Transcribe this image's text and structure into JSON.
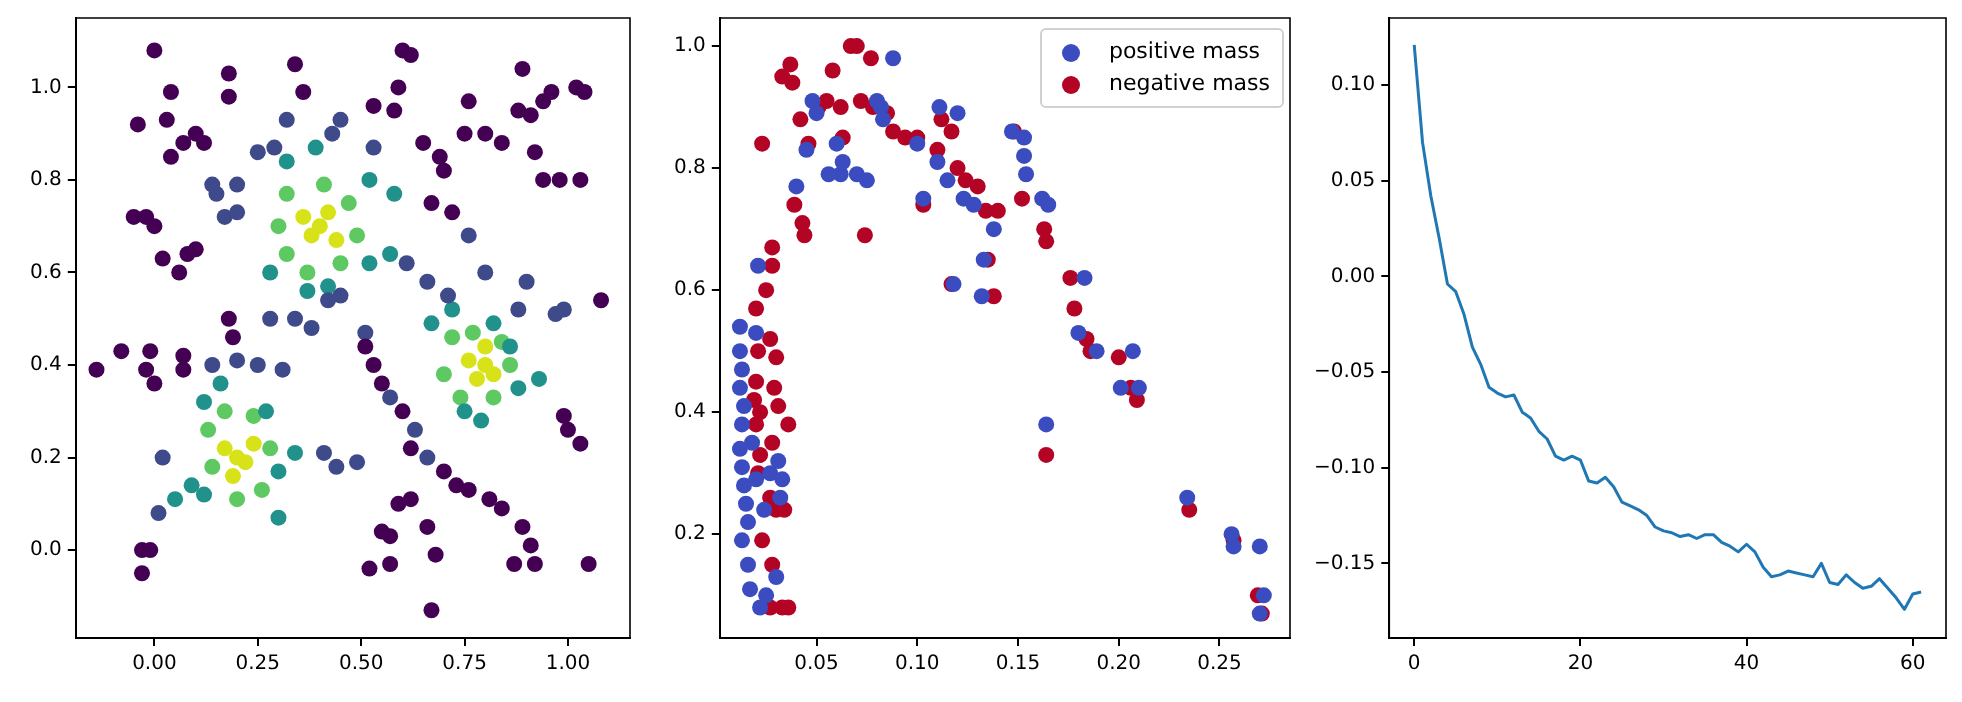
{
  "chart_data": [
    {
      "type": "scatter",
      "marker": "circle",
      "grid": false,
      "xlim": [
        -0.19,
        1.15
      ],
      "ylim": [
        -0.19,
        1.15
      ],
      "xticks": [
        {
          "value": 0,
          "label": "0.00"
        },
        0.25,
        {
          "value": 0.5,
          "label": "0.50"
        },
        0.75,
        {
          "value": 1,
          "label": "1.00"
        }
      ],
      "yticks": [
        {
          "value": 0,
          "label": "0.0"
        },
        0.2,
        0.4,
        0.6,
        0.8,
        {
          "value": 1,
          "label": "1.0"
        }
      ],
      "series": [
        {
          "color": "#440154",
          "x": [
            0.0,
            -0.04,
            0.03,
            0.04,
            0.04,
            0.07,
            0.1,
            0.12,
            -0.05,
            -0.02,
            0.0,
            0.02,
            0.06,
            0.08,
            0.1,
            -0.14,
            -0.08,
            -0.02,
            -0.01,
            0.0,
            0.07,
            0.07,
            0.18,
            0.19,
            -0.03,
            -0.01,
            -0.03,
            0.18,
            0.18,
            0.34,
            0.36,
            0.6,
            0.62,
            0.59,
            0.58,
            0.53,
            0.76,
            0.75,
            0.8,
            0.84,
            0.89,
            0.88,
            0.91,
            0.94,
            0.96,
            1.02,
            1.04,
            0.92,
            0.94,
            0.98,
            1.03,
            0.65,
            0.69,
            0.7,
            0.67,
            0.72,
            1.08,
            0.53,
            0.51,
            0.55,
            0.6,
            0.62,
            0.7,
            0.73,
            0.76,
            0.81,
            0.84,
            0.89,
            0.91,
            0.92,
            0.87,
            1.05,
            0.59,
            0.62,
            0.57,
            0.55,
            0.52,
            0.57,
            0.66,
            0.67,
            0.68,
            1.0,
            1.03,
            0.99
          ],
          "values": [
            1.08,
            0.92,
            0.93,
            0.99,
            0.85,
            0.88,
            0.9,
            0.88,
            0.72,
            0.72,
            0.7,
            0.63,
            0.6,
            0.64,
            0.65,
            0.39,
            0.43,
            0.39,
            0.43,
            0.36,
            0.42,
            0.39,
            0.5,
            0.46,
            0.0,
            0.0,
            -0.05,
            1.03,
            0.98,
            1.05,
            0.99,
            1.08,
            1.07,
            1.0,
            0.95,
            0.96,
            0.97,
            0.9,
            0.9,
            0.88,
            1.04,
            0.95,
            0.94,
            0.97,
            0.99,
            1.0,
            0.99,
            0.86,
            0.8,
            0.8,
            0.8,
            0.88,
            0.85,
            0.82,
            0.75,
            0.73,
            0.54,
            0.4,
            0.44,
            0.36,
            0.3,
            0.22,
            0.17,
            0.14,
            0.13,
            0.11,
            0.09,
            0.05,
            0.01,
            -0.03,
            -0.03,
            -0.03,
            0.1,
            0.11,
            0.03,
            0.04,
            -0.04,
            -0.03,
            0.05,
            -0.13,
            -0.01,
            0.26,
            0.23,
            0.29
          ]
        },
        {
          "color": "#3e4a89",
          "x": [
            0.15,
            0.17,
            0.2,
            0.14,
            0.2,
            0.25,
            0.29,
            0.32,
            0.43,
            0.45,
            0.53,
            0.61,
            0.66,
            0.71,
            0.76,
            0.8,
            0.88,
            0.9,
            0.97,
            0.99,
            0.34,
            0.38,
            0.42,
            0.45,
            0.51,
            0.14,
            0.2,
            0.25,
            0.31,
            0.28,
            0.41,
            0.44,
            0.49,
            0.02,
            0.57,
            0.63,
            0.66,
            0.01
          ],
          "values": [
            0.77,
            0.72,
            0.73,
            0.79,
            0.79,
            0.86,
            0.87,
            0.93,
            0.9,
            0.93,
            0.87,
            0.62,
            0.58,
            0.55,
            0.68,
            0.6,
            0.52,
            0.58,
            0.51,
            0.52,
            0.5,
            0.48,
            0.54,
            0.55,
            0.47,
            0.4,
            0.41,
            0.4,
            0.39,
            0.5,
            0.21,
            0.18,
            0.19,
            0.2,
            0.33,
            0.26,
            0.2,
            0.08
          ]
        },
        {
          "color": "#21918c",
          "x": [
            0.32,
            0.28,
            0.37,
            0.42,
            0.52,
            0.57,
            0.58,
            0.52,
            0.39,
            0.67,
            0.72,
            0.86,
            0.88,
            0.75,
            0.79,
            0.12,
            0.16,
            0.27,
            0.09,
            0.12,
            0.3,
            0.05,
            0.34,
            0.3,
            0.93,
            0.82
          ],
          "values": [
            0.84,
            0.6,
            0.56,
            0.57,
            0.62,
            0.64,
            0.77,
            0.8,
            0.87,
            0.49,
            0.52,
            0.44,
            0.35,
            0.3,
            0.28,
            0.32,
            0.36,
            0.3,
            0.14,
            0.12,
            0.07,
            0.11,
            0.21,
            0.17,
            0.37,
            0.49
          ]
        },
        {
          "color": "#5ec962",
          "x": [
            0.32,
            0.3,
            0.32,
            0.37,
            0.45,
            0.49,
            0.47,
            0.41,
            0.72,
            0.7,
            0.74,
            0.82,
            0.86,
            0.84,
            0.77,
            0.13,
            0.14,
            0.2,
            0.26,
            0.28,
            0.24,
            0.17
          ],
          "values": [
            0.77,
            0.7,
            0.64,
            0.6,
            0.62,
            0.68,
            0.75,
            0.79,
            0.46,
            0.38,
            0.33,
            0.33,
            0.4,
            0.45,
            0.47,
            0.26,
            0.18,
            0.11,
            0.13,
            0.22,
            0.29,
            0.3
          ]
        },
        {
          "color": "#d8e219",
          "x": [
            0.36,
            0.42,
            0.38,
            0.44,
            0.4,
            0.76,
            0.8,
            0.82,
            0.78,
            0.8,
            0.17,
            0.22,
            0.19,
            0.24,
            0.2
          ],
          "values": [
            0.72,
            0.73,
            0.68,
            0.67,
            0.7,
            0.41,
            0.44,
            0.38,
            0.37,
            0.4,
            0.22,
            0.19,
            0.16,
            0.23,
            0.2
          ]
        }
      ]
    },
    {
      "type": "scatter",
      "marker": "circle",
      "grid": false,
      "legend": "top right",
      "xlim": [
        0.002,
        0.285
      ],
      "ylim": [
        0.03,
        1.046
      ],
      "xticks": [
        0.05,
        {
          "value": 0.1,
          "label": "0.10"
        },
        0.15,
        {
          "value": 0.2,
          "label": "0.20"
        },
        0.25
      ],
      "yticks": [
        0.2,
        0.4,
        0.6,
        0.8,
        {
          "value": 1,
          "label": "1.0"
        }
      ],
      "series": [
        {
          "name": "positive mass",
          "color": "#3b4cc0",
          "x": [
            0.012,
            0.012,
            0.013,
            0.012,
            0.014,
            0.013,
            0.012,
            0.013,
            0.014,
            0.015,
            0.013,
            0.016,
            0.017,
            0.016,
            0.018,
            0.02,
            0.022,
            0.021,
            0.02,
            0.024,
            0.027,
            0.031,
            0.033,
            0.032,
            0.03,
            0.025,
            0.04,
            0.045,
            0.048,
            0.05,
            0.056,
            0.06,
            0.062,
            0.063,
            0.07,
            0.075,
            0.08,
            0.082,
            0.083,
            0.088,
            0.1,
            0.103,
            0.11,
            0.111,
            0.115,
            0.12,
            0.118,
            0.123,
            0.128,
            0.132,
            0.133,
            0.138,
            0.147,
            0.153,
            0.153,
            0.154,
            0.162,
            0.165,
            0.164,
            0.183,
            0.18,
            0.189,
            0.201,
            0.207,
            0.21,
            0.234,
            0.256,
            0.257,
            0.27,
            0.27,
            0.272
          ],
          "values": [
            0.54,
            0.5,
            0.47,
            0.44,
            0.41,
            0.38,
            0.34,
            0.31,
            0.28,
            0.25,
            0.19,
            0.15,
            0.11,
            0.22,
            0.35,
            0.29,
            0.08,
            0.64,
            0.53,
            0.24,
            0.3,
            0.32,
            0.29,
            0.26,
            0.13,
            0.1,
            0.77,
            0.83,
            0.91,
            0.89,
            0.79,
            0.84,
            0.79,
            0.81,
            0.79,
            0.78,
            0.91,
            0.9,
            0.88,
            0.98,
            0.84,
            0.75,
            0.81,
            0.9,
            0.78,
            0.89,
            0.61,
            0.75,
            0.74,
            0.59,
            0.65,
            0.7,
            0.86,
            0.85,
            0.82,
            0.79,
            0.75,
            0.74,
            0.38,
            0.62,
            0.53,
            0.5,
            0.44,
            0.5,
            0.44,
            0.26,
            0.2,
            0.18,
            0.18,
            0.07,
            0.1
          ]
        },
        {
          "name": "negative mass",
          "color": "#b40426",
          "x": [
            0.02,
            0.021,
            0.02,
            0.019,
            0.02,
            0.022,
            0.021,
            0.023,
            0.022,
            0.025,
            0.023,
            0.028,
            0.028,
            0.027,
            0.03,
            0.029,
            0.031,
            0.028,
            0.027,
            0.03,
            0.028,
            0.027,
            0.033,
            0.036,
            0.034,
            0.036,
            0.033,
            0.037,
            0.038,
            0.039,
            0.043,
            0.044,
            0.042,
            0.046,
            0.051,
            0.055,
            0.058,
            0.063,
            0.062,
            0.067,
            0.07,
            0.072,
            0.074,
            0.077,
            0.078,
            0.085,
            0.088,
            0.094,
            0.1,
            0.103,
            0.11,
            0.112,
            0.117,
            0.117,
            0.12,
            0.124,
            0.13,
            0.134,
            0.135,
            0.138,
            0.14,
            0.148,
            0.152,
            0.163,
            0.164,
            0.164,
            0.176,
            0.178,
            0.184,
            0.186,
            0.2,
            0.206,
            0.209,
            0.235,
            0.257,
            0.269,
            0.271
          ],
          "values": [
            0.57,
            0.5,
            0.45,
            0.42,
            0.38,
            0.33,
            0.3,
            0.19,
            0.4,
            0.6,
            0.84,
            0.64,
            0.67,
            0.52,
            0.49,
            0.44,
            0.41,
            0.35,
            0.26,
            0.24,
            0.15,
            0.08,
            0.08,
            0.08,
            0.24,
            0.38,
            0.95,
            0.97,
            0.94,
            0.74,
            0.71,
            0.69,
            0.88,
            0.84,
            0.9,
            0.91,
            0.96,
            0.85,
            0.9,
            1.0,
            1.0,
            0.91,
            0.69,
            0.98,
            0.9,
            0.89,
            0.86,
            0.85,
            0.85,
            0.74,
            0.83,
            0.88,
            0.86,
            0.61,
            0.8,
            0.78,
            0.77,
            0.73,
            0.65,
            0.59,
            0.73,
            0.86,
            0.75,
            0.7,
            0.68,
            0.33,
            0.62,
            0.57,
            0.52,
            0.5,
            0.49,
            0.44,
            0.42,
            0.24,
            0.19,
            0.1,
            0.07
          ]
        }
      ]
    },
    {
      "type": "line",
      "grid": false,
      "xlim": [
        -3.0,
        64.0
      ],
      "ylim": [
        -0.189,
        0.135
      ],
      "xticks": [
        0,
        20,
        40,
        60
      ],
      "yticks": [
        {
          "value": -0.15,
          "label": "−0.15"
        },
        {
          "value": -0.1,
          "label": "−0.10"
        },
        {
          "value": -0.05,
          "label": "−0.05"
        },
        {
          "value": 0,
          "label": "0.00"
        },
        0.05,
        {
          "value": 0.1,
          "label": "0.10"
        }
      ],
      "x": [
        0,
        1,
        2,
        3,
        4,
        5,
        6,
        7,
        8,
        9,
        10,
        11,
        12,
        13,
        14,
        15,
        16,
        17,
        18,
        19,
        20,
        21,
        22,
        23,
        24,
        25,
        26,
        27,
        28,
        29,
        30,
        31,
        32,
        33,
        34,
        35,
        36,
        37,
        38,
        39,
        40,
        41,
        42,
        43,
        44,
        45,
        46,
        47,
        48,
        49,
        50,
        51,
        52,
        53,
        54,
        55,
        56,
        57,
        58,
        59,
        60,
        61
      ],
      "series": [
        {
          "color": "#1f77b4",
          "values": [
            0.121,
            0.07,
            0.042,
            0.02,
            -0.004,
            -0.008,
            -0.02,
            -0.037,
            -0.046,
            -0.058,
            -0.061,
            -0.063,
            -0.062,
            -0.071,
            -0.074,
            -0.081,
            -0.085,
            -0.094,
            -0.096,
            -0.094,
            -0.096,
            -0.107,
            -0.108,
            -0.105,
            -0.11,
            -0.118,
            -0.12,
            -0.122,
            -0.125,
            -0.131,
            -0.133,
            -0.134,
            -0.136,
            -0.135,
            -0.137,
            -0.135,
            -0.135,
            -0.139,
            -0.141,
            -0.144,
            -0.14,
            -0.144,
            -0.152,
            -0.157,
            -0.156,
            -0.154,
            -0.155,
            -0.156,
            -0.157,
            -0.15,
            -0.16,
            -0.161,
            -0.156,
            -0.16,
            -0.163,
            -0.162,
            -0.158,
            -0.163,
            -0.168,
            -0.174,
            -0.166,
            -0.165
          ]
        }
      ]
    }
  ]
}
